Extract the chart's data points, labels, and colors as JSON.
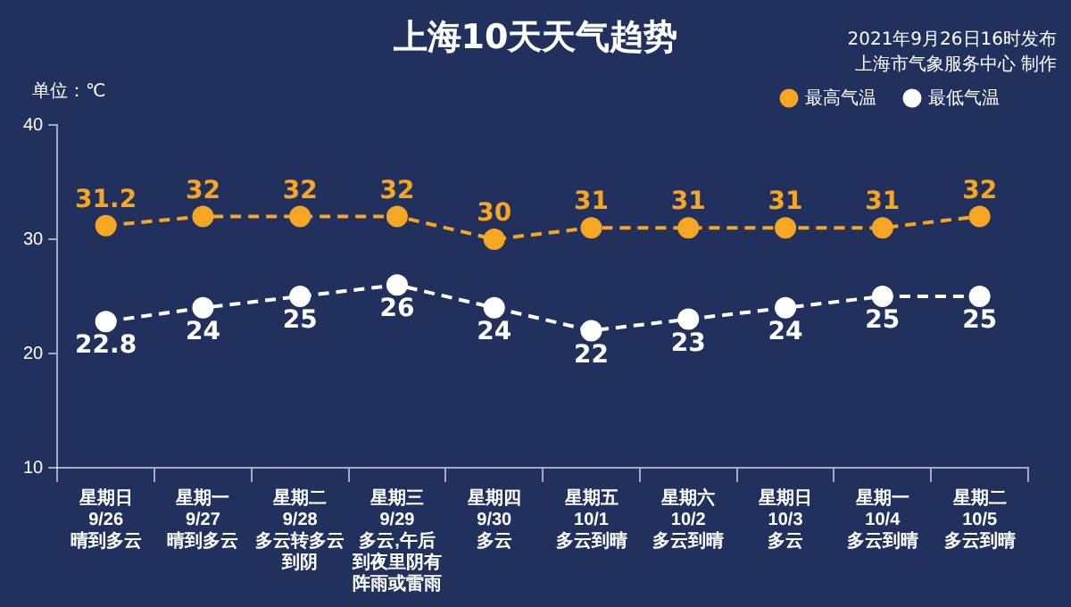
{
  "chart_data": {
    "type": "line",
    "title": "上海10天天气趋势",
    "ylabel": "单位：℃",
    "annotations": [
      "2021年9月26日16时发布",
      "上海市气象服务中心 制作"
    ],
    "categories": [
      "星期日\n9/26\n晴到多云",
      "星期一\n9/27\n晴到多云",
      "星期二\n9/28\n多云转多云到阴",
      "星期三\n9/29\n多云,午后到夜里阴有阵雨或雷雨",
      "星期四\n9/30\n多云",
      "星期五\n10/1\n多云到晴",
      "星期六\n10/2\n多云到晴",
      "星期日\n10/3\n多云",
      "星期一\n10/4\n多云到晴",
      "星期二\n10/5\n多云到晴"
    ],
    "series": [
      {
        "name": "最高气温",
        "color": "#f5a623",
        "values": [
          31.2,
          32,
          32,
          32,
          30,
          31,
          31,
          31,
          31,
          32
        ]
      },
      {
        "name": "最低气温",
        "color": "#ffffff",
        "values": [
          22.8,
          24,
          25,
          26,
          24,
          22,
          23,
          24,
          25,
          25
        ]
      }
    ],
    "ylim": [
      10,
      40
    ],
    "yticks": [
      10,
      20,
      30,
      40
    ],
    "grid": false,
    "legend": "top right",
    "marker": "circle",
    "line_style": "dashed",
    "data_labels": true
  }
}
